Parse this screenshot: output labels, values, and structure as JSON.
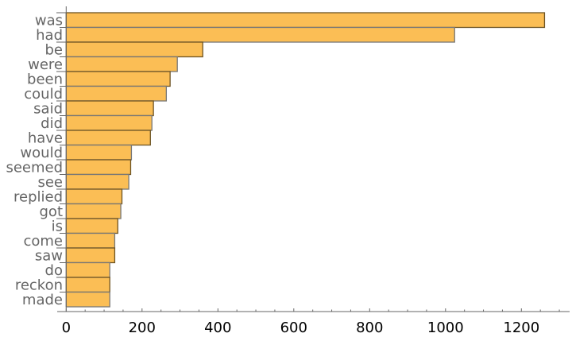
{
  "chart_data": {
    "type": "bar",
    "orientation": "horizontal",
    "title": "",
    "xlabel": "",
    "ylabel": "",
    "categories": [
      "was",
      "had",
      "be",
      "were",
      "been",
      "could",
      "said",
      "did",
      "have",
      "would",
      "seemed",
      "see",
      "replied",
      "got",
      "is",
      "come",
      "saw",
      "do",
      "reckon",
      "made"
    ],
    "values": [
      1261,
      1024,
      360,
      293,
      274,
      264,
      230,
      226,
      222,
      172,
      170,
      165,
      147,
      144,
      136,
      128,
      128,
      115,
      115,
      115
    ],
    "xlim": [
      -25,
      1330
    ],
    "xticks": [
      0,
      200,
      400,
      600,
      800,
      1000,
      1200
    ],
    "xtick_labels": [
      "0",
      "200",
      "400",
      "600",
      "800",
      "1000",
      "1200"
    ],
    "grid": false,
    "colors": {
      "bar_fill": "#fbbe55",
      "bar_edge": "#6e5424",
      "axis": "#666666"
    }
  }
}
